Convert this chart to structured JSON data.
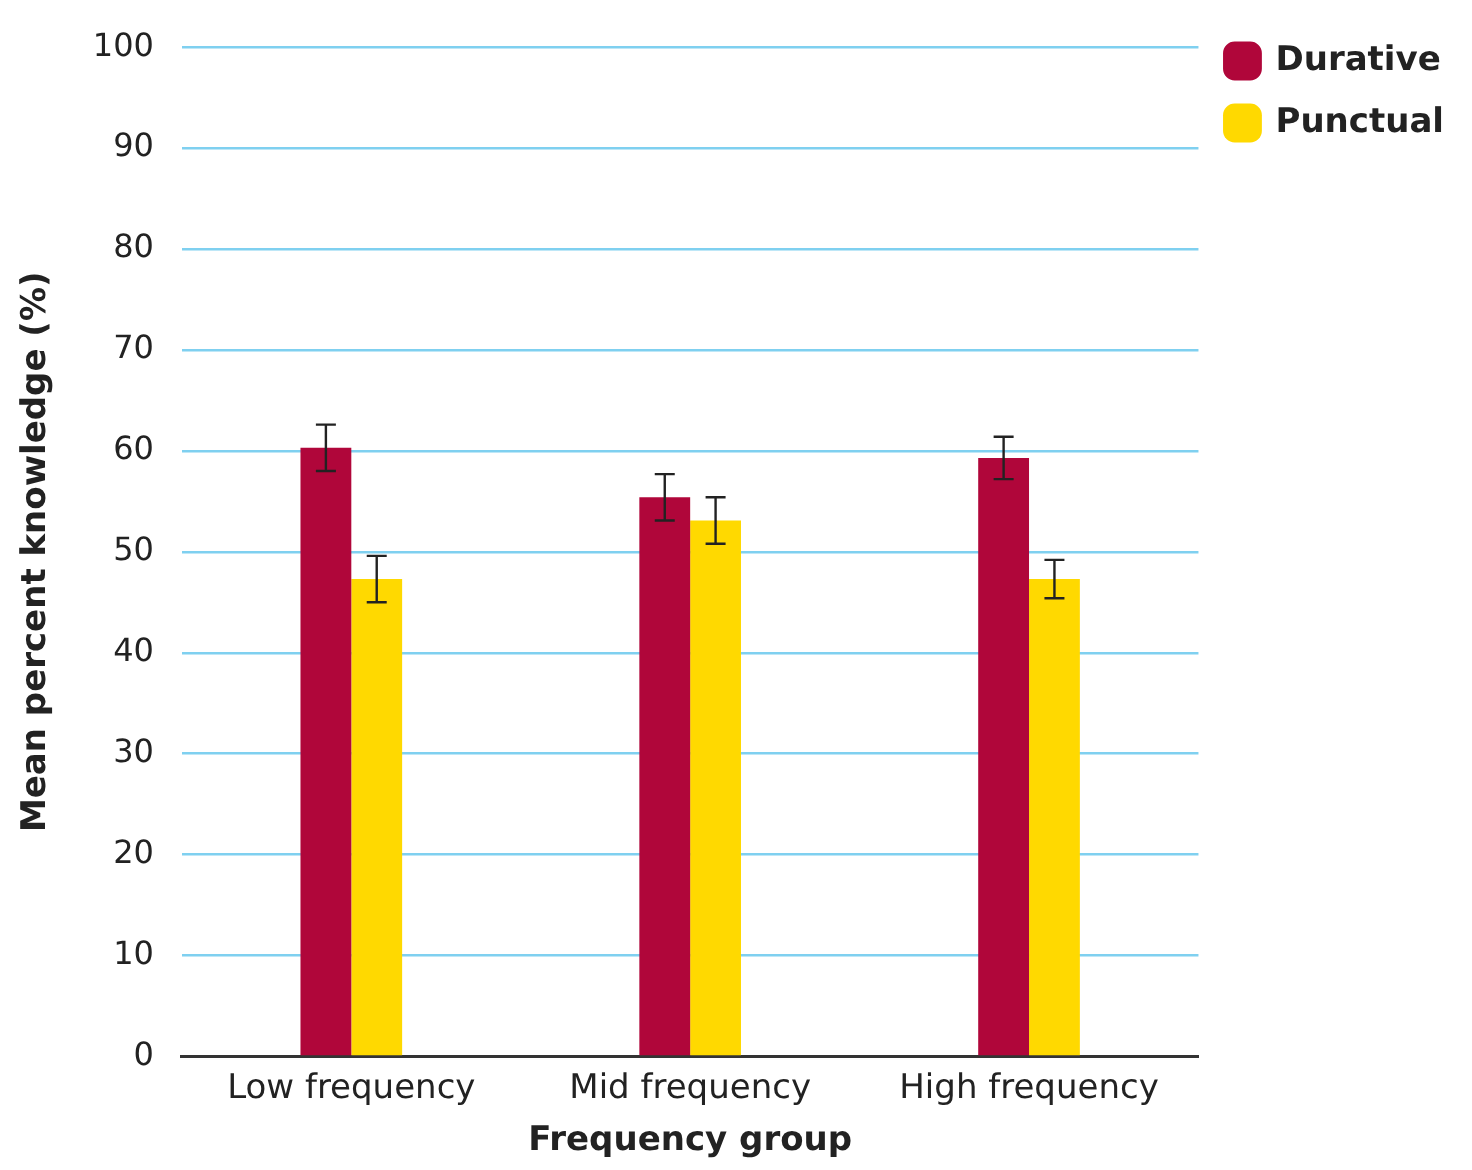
{
  "chart_data": {
    "type": "bar",
    "xlabel": "Frequency group",
    "ylabel": "Mean percent knowledge (%)",
    "categories": [
      "Low frequency",
      "Mid frequency",
      "High frequency"
    ],
    "series": [
      {
        "name": "Durative",
        "color": "#b0063a",
        "values": [
          60.3,
          55.4,
          59.3
        ],
        "errors": [
          2.3,
          2.3,
          2.1
        ]
      },
      {
        "name": "Punctual",
        "color": "#ffd900",
        "values": [
          47.3,
          53.1,
          47.3
        ],
        "errors": [
          2.3,
          2.3,
          1.9
        ]
      }
    ],
    "ylim": [
      0,
      100
    ],
    "yticks": [
      0,
      10,
      20,
      30,
      40,
      50,
      60,
      70,
      80,
      90,
      100
    ],
    "grid": "y",
    "legend": "top right"
  }
}
